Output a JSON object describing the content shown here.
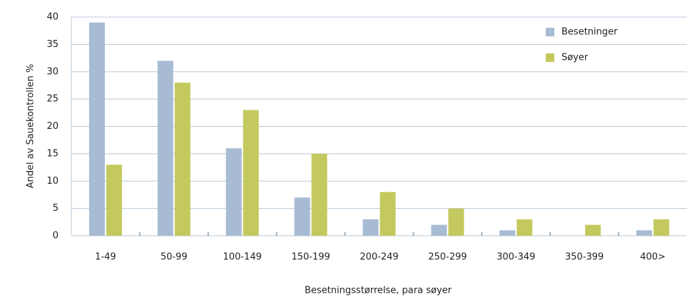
{
  "chart_data": {
    "type": "bar",
    "xlabel": "Besetningsstørrelse, para søyer",
    "ylabel": "Andel av Sauekontrollen %",
    "categories": [
      "1-49",
      "50-99",
      "100-149",
      "150-199",
      "200-249",
      "250-299",
      "300-349",
      "350-399",
      "400>"
    ],
    "series": [
      {
        "name": "Besetninger",
        "color": "#a7bbd3",
        "values": [
          39,
          32,
          16,
          7,
          3,
          2,
          1,
          0,
          1
        ]
      },
      {
        "name": "Søyer",
        "color": "#c4c95f",
        "values": [
          13,
          28,
          23,
          15,
          8,
          5,
          3,
          2,
          3
        ]
      }
    ],
    "ylim": [
      0,
      40
    ],
    "yticks": [
      0,
      5,
      10,
      15,
      20,
      25,
      30,
      35,
      40
    ],
    "grid": true,
    "legend": "upper right"
  }
}
